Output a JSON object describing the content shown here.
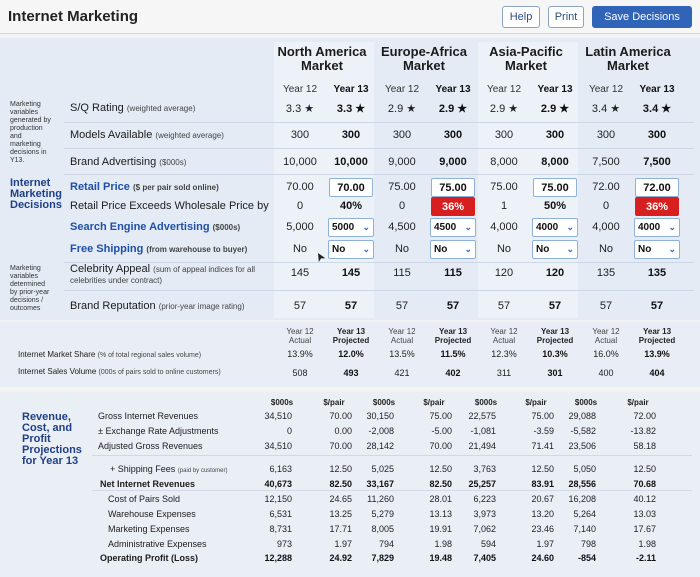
{
  "header": {
    "title": "Internet Marketing",
    "help": "Help",
    "print": "Print",
    "save": "Save Decisions"
  },
  "regions": [
    "North America\nMarket",
    "Europe-Africa\nMarket",
    "Asia-Pacific\nMarket",
    "Latin America\nMarket"
  ],
  "year12": "Year 12",
  "year13": "Year 13",
  "side": {
    "variables": "Marketing\nvariables\ngenerated by\nproduction\nand\nmarketing\ndecisions in\nY13.",
    "decisions": "Internet\nMarketing\nDecisions",
    "prior": "Marketing\nvariables\ndetermined\nby prior-year\ndecisions /\noutcomes"
  },
  "rows": {
    "sq": {
      "label": "S/Q Rating",
      "note": "(weighted average)",
      "vals": [
        "3.3 ★",
        "3.3 ★",
        "2.9 ★",
        "2.9 ★",
        "2.9 ★",
        "2.9 ★",
        "3.4 ★",
        "3.4 ★"
      ]
    },
    "models": {
      "label": "Models Available",
      "note": "(weighted average)",
      "vals": [
        "300",
        "300",
        "300",
        "300",
        "300",
        "300",
        "300",
        "300"
      ]
    },
    "brand": {
      "label": "Brand Advertising",
      "note": "($000s)",
      "vals": [
        "10,000",
        "10,000",
        "9,000",
        "9,000",
        "8,000",
        "8,000",
        "7,500",
        "7,500"
      ]
    },
    "price": {
      "label": "Retail Price",
      "note": "($ per pair sold online)",
      "vals": [
        "70.00",
        "70.00",
        "75.00",
        "75.00",
        "75.00",
        "75.00",
        "72.00",
        "72.00"
      ]
    },
    "exceeds": {
      "label": "Retail Price Exceeds Wholesale Price by",
      "vals": [
        "0",
        "40%",
        "0",
        "36%",
        "1",
        "50%",
        "0",
        "36%"
      ]
    },
    "search": {
      "label": "Search Engine Advertising",
      "note": "($000s)",
      "vals": [
        "5,000",
        "5000",
        "4,500",
        "4500",
        "4,000",
        "4000",
        "4,000",
        "4000"
      ]
    },
    "ship": {
      "label": "Free Shipping",
      "note": "(from warehouse to buyer)",
      "vals": [
        "No",
        "No",
        "No",
        "No",
        "No",
        "No",
        "No",
        "No"
      ]
    },
    "celeb": {
      "label": "Celebrity Appeal",
      "note": "(sum of appeal indices for all celebrities under contract)",
      "vals": [
        "145",
        "145",
        "115",
        "115",
        "120",
        "120",
        "135",
        "135"
      ]
    },
    "repute": {
      "label": "Brand Reputation",
      "note": "(prior-year image rating)",
      "vals": [
        "57",
        "57",
        "57",
        "57",
        "57",
        "57",
        "57",
        "57"
      ]
    }
  },
  "share": {
    "heads": [
      "Year 12\nActual",
      "Year 13\nProjected"
    ],
    "share_label": "Internet Market Share",
    "share_note": "(% of total regional sales volume)",
    "share_vals": [
      "13.9%",
      "12.0%",
      "13.5%",
      "11.5%",
      "12.3%",
      "10.3%",
      "16.0%",
      "13.9%"
    ],
    "volume_label": "Internet Sales Volume",
    "volume_note": "(000s of pairs sold to online customers)",
    "volume_vals": [
      "508",
      "493",
      "421",
      "402",
      "311",
      "301",
      "400",
      "404"
    ]
  },
  "proj": {
    "side": "Revenue,\nCost, and\nProfit\nProjections\nfor Year 13",
    "heads": [
      "$000s",
      "$/pair"
    ],
    "rows": [
      {
        "label": "Gross Internet Revenues",
        "bold": false,
        "vals": [
          "34,510",
          "70.00",
          "30,150",
          "75.00",
          "22,575",
          "75.00",
          "29,088",
          "72.00"
        ]
      },
      {
        "label": "± Exchange Rate Adjustments",
        "bold": false,
        "vals": [
          "0",
          "0.00",
          "-2,008",
          "-5.00",
          "-1,081",
          "-3.59",
          "-5,582",
          "-13.82"
        ]
      },
      {
        "label": "Adjusted Gross Revenues",
        "bold": false,
        "vals": [
          "34,510",
          "70.00",
          "28,142",
          "70.00",
          "21,494",
          "71.41",
          "23,506",
          "58.18"
        ]
      },
      {
        "label": "+ Shipping Fees",
        "note": "(paid by customer)",
        "bold": false,
        "vals": [
          "6,163",
          "12.50",
          "5,025",
          "12.50",
          "3,763",
          "12.50",
          "5,050",
          "12.50"
        ]
      },
      {
        "label": "Net Internet Revenues",
        "bold": true,
        "vals": [
          "40,673",
          "82.50",
          "33,167",
          "82.50",
          "25,257",
          "83.91",
          "28,556",
          "70.68"
        ]
      },
      {
        "label": "Cost of Pairs Sold",
        "bold": false,
        "vals": [
          "12,150",
          "24.65",
          "11,260",
          "28.01",
          "6,223",
          "20.67",
          "16,208",
          "40.12"
        ]
      },
      {
        "label": "Warehouse Expenses",
        "bold": false,
        "vals": [
          "6,531",
          "13.25",
          "5,279",
          "13.13",
          "3,973",
          "13.20",
          "5,264",
          "13.03"
        ]
      },
      {
        "label": "Marketing Expenses",
        "bold": false,
        "vals": [
          "8,731",
          "17.71",
          "8,005",
          "19.91",
          "7,062",
          "23.46",
          "7,140",
          "17.67"
        ]
      },
      {
        "label": "Administrative Expenses",
        "bold": false,
        "vals": [
          "973",
          "1.97",
          "794",
          "1.98",
          "594",
          "1.97",
          "798",
          "1.98"
        ]
      },
      {
        "label": "Operating Profit (Loss)",
        "bold": true,
        "vals": [
          "12,288",
          "24.92",
          "7,829",
          "19.48",
          "7,405",
          "24.60",
          "-854",
          "-2.11"
        ]
      }
    ]
  }
}
